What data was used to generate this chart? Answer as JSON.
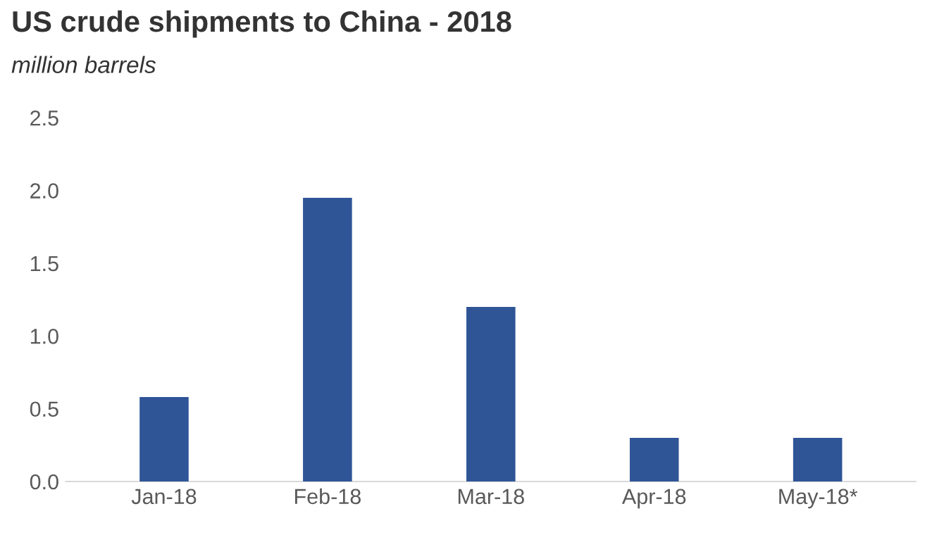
{
  "chart_data": {
    "type": "bar",
    "title": "US crude shipments to China - 2018",
    "subtitle": "million barrels",
    "categories": [
      "Jan-18",
      "Feb-18",
      "Mar-18",
      "Apr-18",
      "May-18*"
    ],
    "values": [
      0.58,
      1.95,
      1.2,
      0.3,
      0.3
    ],
    "color": "#2f5597",
    "ylim": [
      0,
      2.5
    ],
    "yticks": [
      {
        "value": 0,
        "label": "0.0"
      },
      0.5,
      {
        "value": 1,
        "label": "1.0"
      },
      1.5,
      {
        "value": 2,
        "label": "2.0"
      },
      2.5
    ]
  }
}
